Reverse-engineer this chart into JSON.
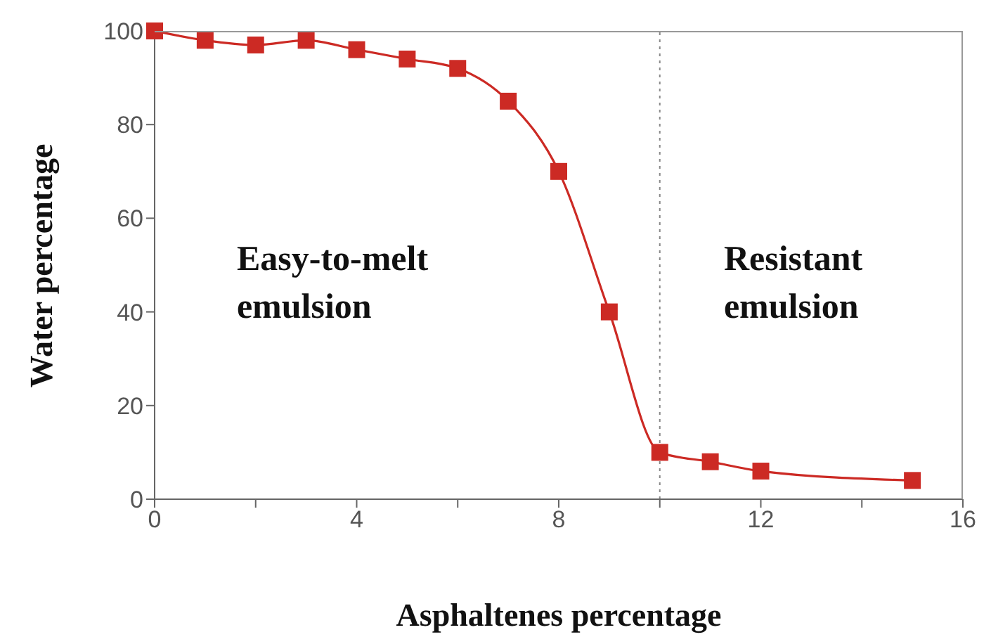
{
  "chart_data": {
    "type": "line",
    "xlabel": "Asphaltenes percentage",
    "ylabel": "Water percentage",
    "x": [
      0,
      1,
      2,
      3,
      4,
      5,
      6,
      7,
      8,
      9,
      10,
      11,
      12,
      15
    ],
    "series": [
      {
        "color": "#cc2a24",
        "values": [
          100,
          98,
          97,
          98,
          96,
          94,
          92,
          85,
          70,
          40,
          10,
          8,
          6,
          4
        ]
      }
    ],
    "xlim": [
      0,
      16
    ],
    "xticks": [
      0,
      {
        "value": 2,
        "label": null
      },
      4,
      {
        "value": 6,
        "label": null
      },
      8,
      {
        "value": 10,
        "label": null
      },
      12,
      {
        "value": 14,
        "label": null
      },
      16
    ],
    "ylim": [
      0,
      100
    ],
    "yticks": [
      0,
      20,
      40,
      60,
      80,
      100
    ],
    "marker": "square",
    "line_style": "solid",
    "grid": false,
    "legend": false,
    "ref_lines": [
      {
        "axis": "x",
        "value": 10,
        "color": "#888888",
        "line_style": "dotted"
      }
    ],
    "annotations": [
      "Easy-to-melt\nemulsion",
      "Resistant\nemulsion"
    ]
  }
}
